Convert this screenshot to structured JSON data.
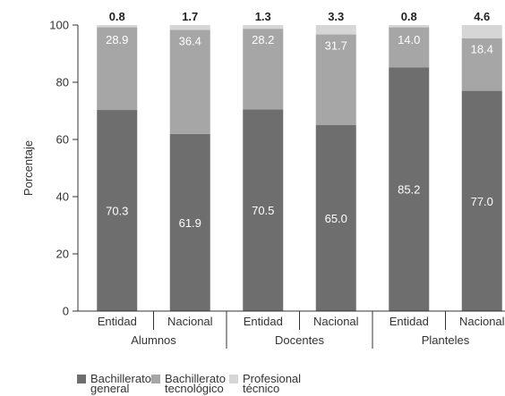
{
  "chart_data": {
    "type": "bar",
    "stacked": true,
    "ylabel": "Porcentaje",
    "ylim": [
      0,
      100
    ],
    "yticks": [
      0,
      20,
      40,
      60,
      80,
      100
    ],
    "categories": [
      "Entidad",
      "Nacional",
      "Entidad",
      "Nacional",
      "Entidad",
      "Nacional"
    ],
    "groups": [
      {
        "label": "Alumnos",
        "span": 2
      },
      {
        "label": "Docentes",
        "span": 2
      },
      {
        "label": "Planteles",
        "span": 2
      }
    ],
    "series": [
      {
        "name": "Bachillerato general",
        "name_lines": [
          "Bachillerato",
          "general"
        ],
        "color": "#6e6e6e",
        "values": [
          70.3,
          61.9,
          70.5,
          65.0,
          85.2,
          77.0
        ],
        "labels": [
          "70.3",
          "61.9",
          "70.5",
          "65.0",
          "85.2",
          "77.0"
        ]
      },
      {
        "name": "Bachillerato tecnológico",
        "name_lines": [
          "Bachillerato",
          "tecnológico"
        ],
        "color": "#a6a6a6",
        "values": [
          28.9,
          36.4,
          28.2,
          31.7,
          14.0,
          18.4
        ],
        "labels": [
          "28.9",
          "36.4",
          "28.2",
          "31.7",
          "14.0",
          "18.4"
        ]
      },
      {
        "name": "Profesional técnico",
        "name_lines": [
          "Profesional",
          "técnico"
        ],
        "color": "#d6d6d6",
        "values": [
          0.8,
          1.7,
          1.3,
          3.3,
          0.8,
          4.6
        ],
        "labels": [
          "0.8",
          "1.7",
          "1.3",
          "3.3",
          "0.8",
          "4.6"
        ]
      }
    ],
    "grid": false,
    "legend_position": "bottom-left"
  }
}
